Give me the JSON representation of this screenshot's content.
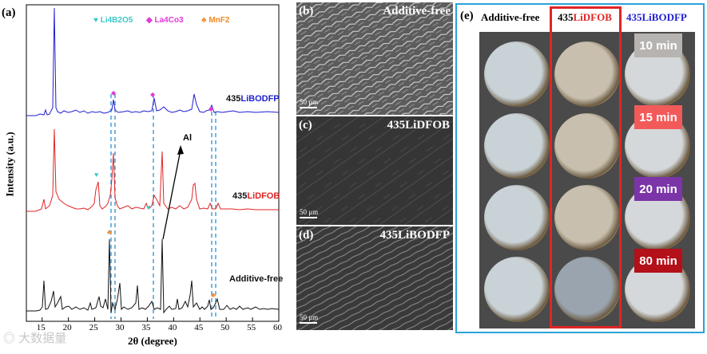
{
  "panel_a": {
    "label": "(a)",
    "xlabel": "2θ (degree)",
    "ylabel": "Intensity (a.u.)",
    "xticks": [
      "15",
      "20",
      "25",
      "30",
      "35",
      "40",
      "45",
      "50",
      "55",
      "60"
    ],
    "legend": [
      {
        "symbol": "♥",
        "text": "Li4B2O5",
        "color": "#3ec7c7"
      },
      {
        "symbol": "◆",
        "text": "La4Co3",
        "color": "#e03ad8"
      },
      {
        "symbol": "♣",
        "text": "MnF2",
        "color": "#ef8a2a"
      }
    ],
    "traces": [
      {
        "prefix": "435",
        "name": "LiBODFP",
        "color": "#1f1fd0"
      },
      {
        "prefix": "435",
        "name": "LiDFOB",
        "color": "#e02525"
      },
      {
        "prefix": "",
        "name": "Additive-free",
        "color": "#111111"
      }
    ],
    "al_label": "Al"
  },
  "panel_b": {
    "label": "(b)",
    "title": "Additive-free",
    "scale": "50 μm"
  },
  "panel_c": {
    "label": "(c)",
    "title": "435LiDFOB",
    "scale": "50 μm"
  },
  "panel_d": {
    "label": "(d)",
    "title": "435LiBODFP",
    "scale": "50 μm"
  },
  "panel_e": {
    "label": "(e)",
    "col_additive": "Additive-free",
    "col_dfob_prefix": "435",
    "col_dfob_name": "LiDFOB",
    "col_bodfp": "435LiBODFP",
    "times": [
      {
        "text": "10 min",
        "color": "#b7b3b1"
      },
      {
        "text": "15 min",
        "color": "#f25a5a"
      },
      {
        "text": "20 min",
        "color": "#7b35a8"
      },
      {
        "text": "80 min",
        "color": "#b3101a"
      }
    ],
    "highlight_color": "#e02525",
    "border_color": "#2aa3d8"
  },
  "watermark": "大数据量"
}
